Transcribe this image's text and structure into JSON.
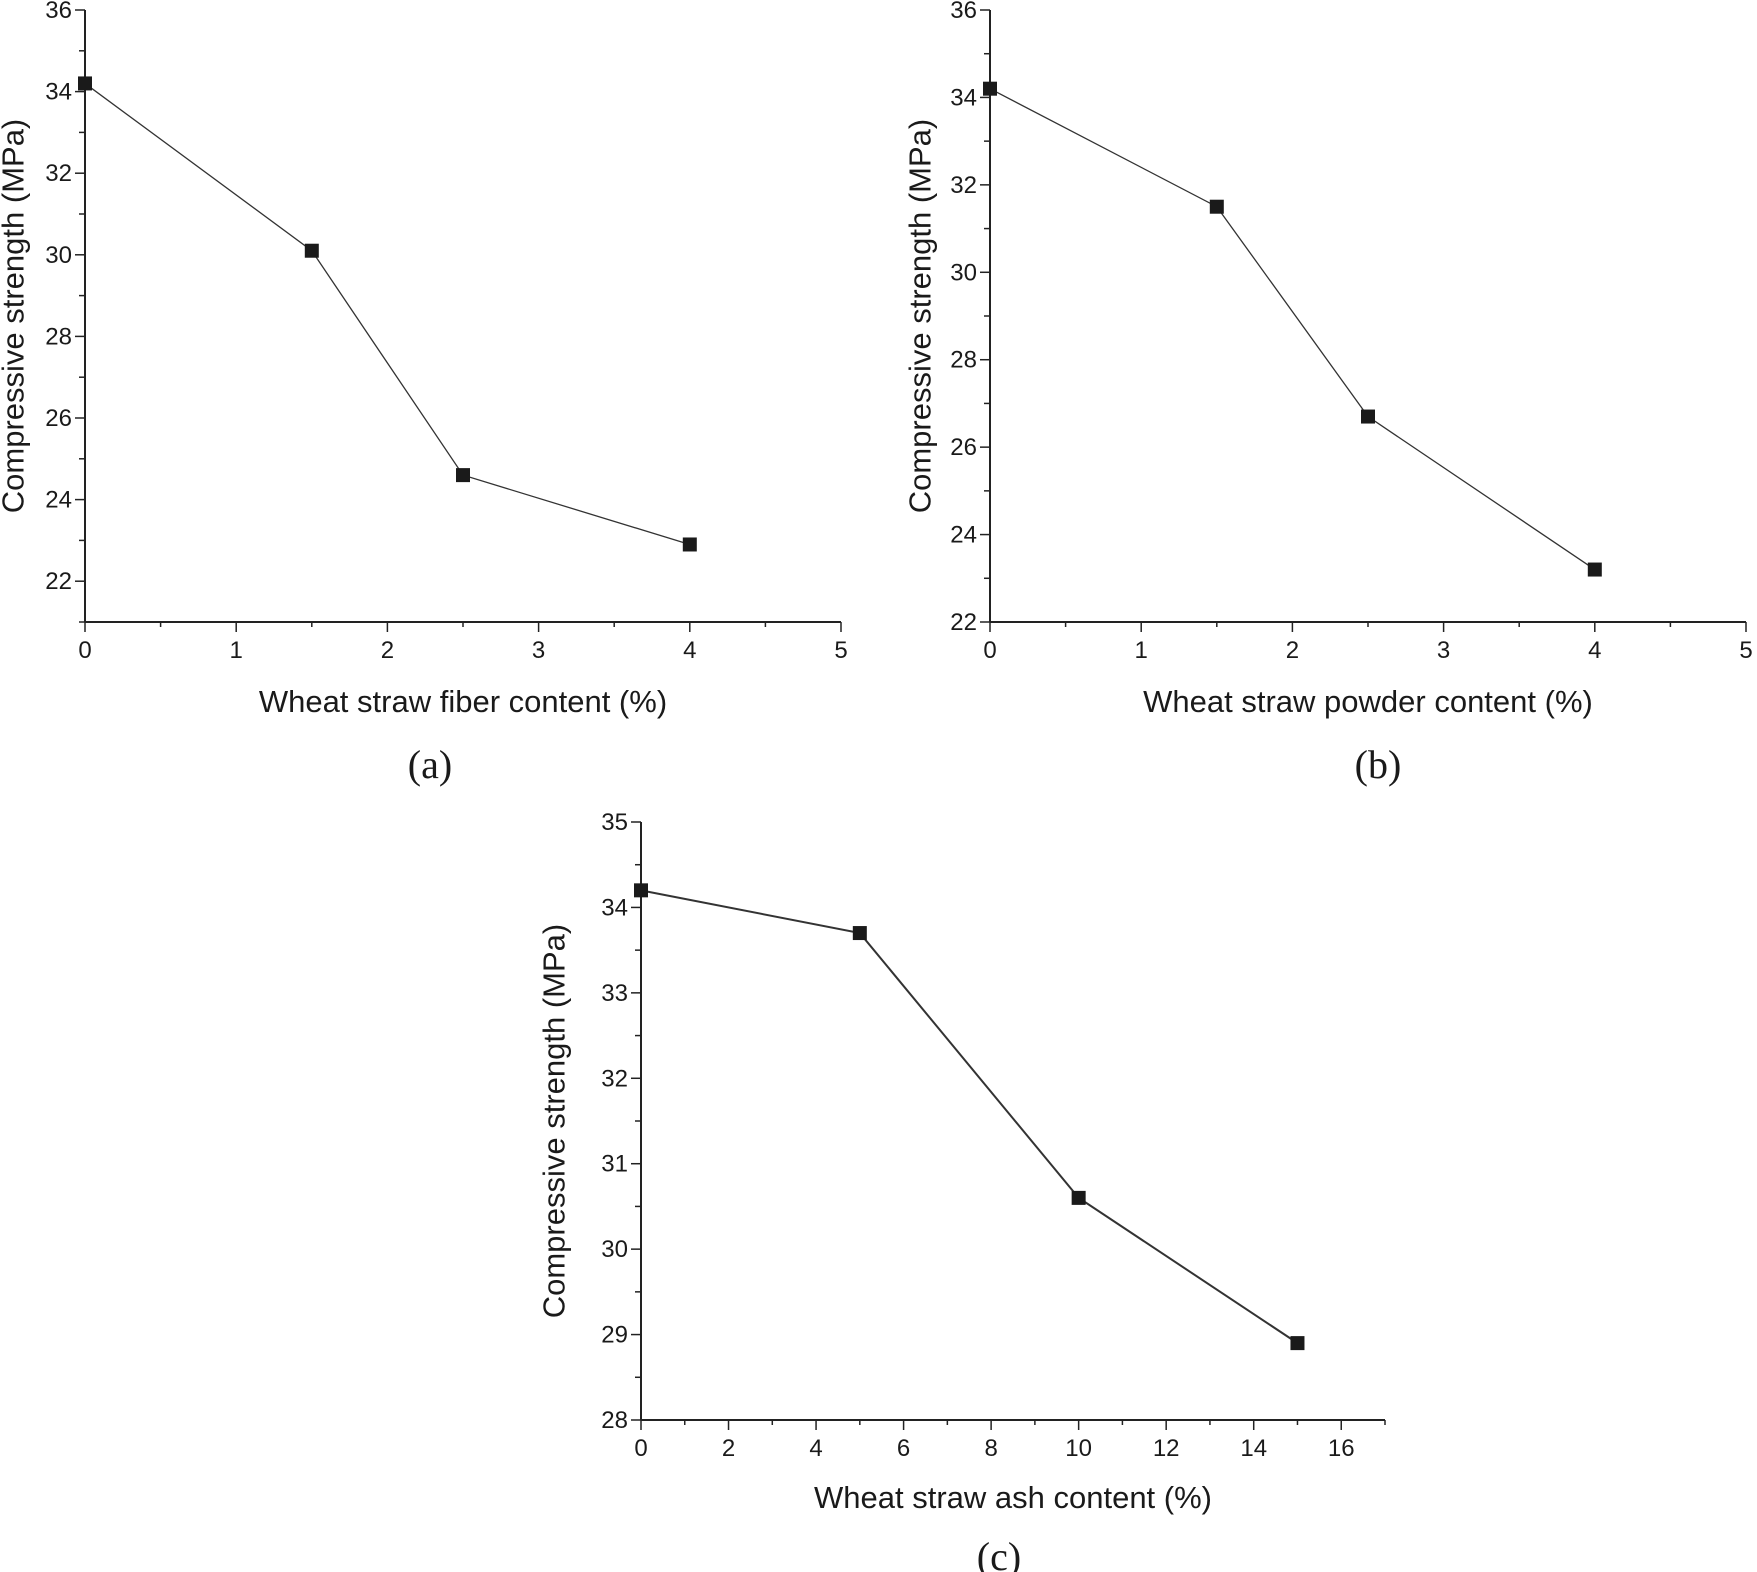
{
  "chart_data": [
    {
      "id": "a",
      "type": "line",
      "caption": "(a)",
      "title": "",
      "xlabel": "Wheat straw fiber content (%)",
      "ylabel": "Compressive strength (MPa)",
      "xlim": [
        0,
        5
      ],
      "ylim": [
        21,
        36
      ],
      "xticks": [
        0,
        1,
        2,
        3,
        4,
        5
      ],
      "yticks": [
        22,
        24,
        26,
        28,
        30,
        32,
        34,
        36
      ],
      "x_minor_step": 0.5,
      "y_minor_step": 1,
      "marker": "square",
      "series": [
        {
          "name": "Compressive strength",
          "x": [
            0,
            1.5,
            2.5,
            4
          ],
          "y": [
            34.2,
            30.1,
            24.6,
            22.9
          ]
        }
      ]
    },
    {
      "id": "b",
      "type": "line",
      "caption": "(b)",
      "title": "",
      "xlabel": "Wheat straw powder content (%)",
      "ylabel": "Compressive strength (MPa)",
      "xlim": [
        0,
        5
      ],
      "ylim": [
        22,
        36
      ],
      "xticks": [
        0,
        1,
        2,
        3,
        4,
        5
      ],
      "yticks": [
        22,
        24,
        26,
        28,
        30,
        32,
        34,
        36
      ],
      "x_minor_step": 0.5,
      "y_minor_step": 1,
      "marker": "square",
      "series": [
        {
          "name": "Compressive strength",
          "x": [
            0,
            1.5,
            2.5,
            4
          ],
          "y": [
            34.2,
            31.5,
            26.7,
            23.2
          ]
        }
      ]
    },
    {
      "id": "c",
      "type": "line",
      "caption": "(c)",
      "title": "",
      "xlabel": "Wheat straw ash content (%)",
      "ylabel": "Compressive strength (MPa)",
      "xlim": [
        0,
        17
      ],
      "ylim": [
        28,
        35
      ],
      "xticks": [
        0,
        2,
        4,
        6,
        8,
        10,
        12,
        14,
        16
      ],
      "yticks": [
        28,
        29,
        30,
        31,
        32,
        33,
        34,
        35
      ],
      "x_minor_step": 1,
      "y_minor_step": 0.5,
      "marker": "square",
      "series": [
        {
          "name": "Compressive strength",
          "x": [
            0,
            5,
            10,
            15
          ],
          "y": [
            34.2,
            33.7,
            30.6,
            28.9
          ]
        }
      ]
    }
  ]
}
